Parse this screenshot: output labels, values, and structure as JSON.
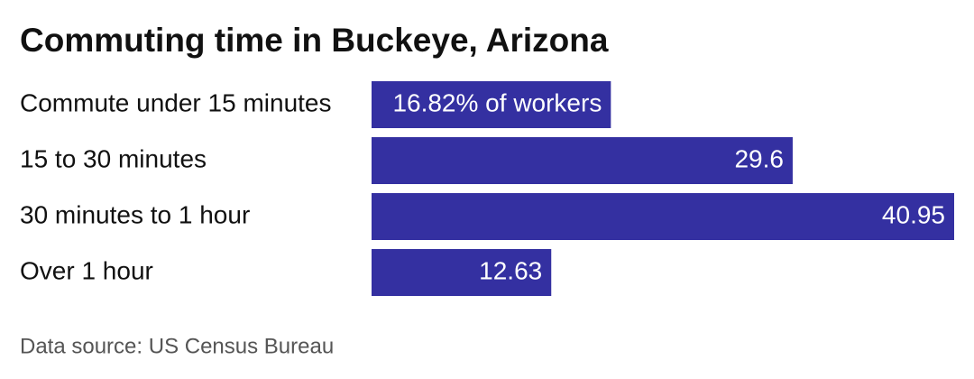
{
  "chart_data": {
    "type": "hbar",
    "title": "Commuting time in Buckeye, Arizona",
    "categories": [
      "Commute under 15 minutes",
      "15 to 30 minutes",
      "30 minutes to 1 hour",
      "Over 1 hour"
    ],
    "values": [
      16.82,
      29.6,
      40.95,
      12.63
    ],
    "value_labels": [
      "16.82% of workers",
      "29.6",
      "40.95",
      "12.63"
    ],
    "color": "#3430a1",
    "source": "Data source: US Census Bureau"
  }
}
